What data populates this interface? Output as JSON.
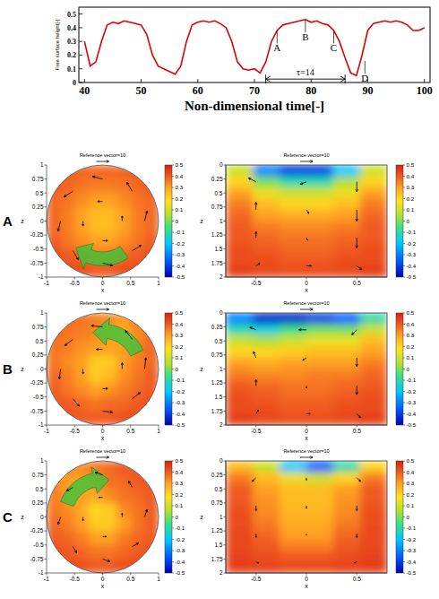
{
  "row_labels": [
    "A",
    "B",
    "C"
  ],
  "chart_data": [
    {
      "type": "line",
      "y_label": "Free surface height[-]",
      "x_label": "Non-dimensional time[-]",
      "x": [
        40,
        41,
        42,
        43,
        44,
        45,
        46,
        47,
        48,
        49,
        50,
        51,
        52,
        53,
        54,
        55,
        56,
        57,
        58,
        59,
        60,
        61,
        62,
        63,
        64,
        65,
        66,
        67,
        68,
        69,
        70,
        71,
        72,
        73,
        74,
        75,
        76,
        77,
        78,
        79,
        80,
        81,
        82,
        83,
        84,
        85,
        86,
        87,
        88,
        89,
        90,
        91,
        92,
        93,
        94,
        95,
        96,
        97,
        98,
        99,
        100
      ],
      "values": [
        0.3,
        0.12,
        0.15,
        0.3,
        0.42,
        0.44,
        0.43,
        0.45,
        0.44,
        0.43,
        0.42,
        0.35,
        0.2,
        0.12,
        0.1,
        0.08,
        0.06,
        0.12,
        0.3,
        0.42,
        0.44,
        0.45,
        0.44,
        0.45,
        0.43,
        0.4,
        0.3,
        0.15,
        0.1,
        0.09,
        0.1,
        0.07,
        0.15,
        0.3,
        0.38,
        0.42,
        0.43,
        0.44,
        0.45,
        0.46,
        0.44,
        0.45,
        0.43,
        0.42,
        0.38,
        0.3,
        0.18,
        0.07,
        0.05,
        0.2,
        0.38,
        0.43,
        0.44,
        0.45,
        0.44,
        0.45,
        0.44,
        0.42,
        0.38,
        0.38,
        0.4
      ],
      "color": "#e00000",
      "xlim": [
        39,
        101
      ],
      "xticks": [
        40,
        50,
        60,
        70,
        80,
        90,
        100
      ],
      "ylim": [
        0,
        0.55
      ],
      "yticks": [
        0,
        0.1,
        0.2,
        0.3,
        0.4,
        0.5
      ],
      "annotations": [
        {
          "text": "A",
          "x": 74,
          "y": 0.22
        },
        {
          "text": "B",
          "x": 79,
          "y": 0.3
        },
        {
          "text": "C",
          "x": 84,
          "y": 0.22
        },
        {
          "text": "D",
          "x": 89.5,
          "y": 0.0
        }
      ],
      "interval": {
        "label": "τ=14",
        "start": 72,
        "end": 86,
        "y": 0.025
      }
    },
    {
      "type": "contour",
      "title": "Reference vector=10",
      "reference_vector": 10,
      "x_label": "x",
      "y_label": "z",
      "xlim": [
        -1,
        1
      ],
      "ylim": [
        -1,
        1
      ],
      "xticks": [
        -1,
        -0.5,
        0,
        0.5,
        1
      ],
      "yticks": [
        -1,
        -0.75,
        -0.5,
        -0.25,
        0,
        0.25,
        0.5,
        0.75,
        1
      ],
      "cells": [
        [
          0.4,
          0.4,
          0.38,
          0.38,
          0.38,
          0.38,
          0.4,
          0.4
        ],
        [
          0.4,
          0.38,
          0.36,
          0.35,
          0.35,
          0.36,
          0.38,
          0.4
        ],
        [
          0.38,
          0.36,
          0.33,
          0.3,
          0.3,
          0.33,
          0.36,
          0.38
        ],
        [
          0.38,
          0.35,
          0.3,
          0.25,
          0.25,
          0.3,
          0.35,
          0.38
        ],
        [
          0.38,
          0.35,
          0.3,
          0.25,
          0.25,
          0.3,
          0.35,
          0.38
        ],
        [
          0.4,
          0.36,
          0.33,
          0.3,
          0.3,
          0.33,
          0.36,
          0.4
        ],
        [
          0.42,
          0.4,
          0.38,
          0.36,
          0.36,
          0.38,
          0.4,
          0.42
        ],
        [
          0.42,
          0.42,
          0.42,
          0.4,
          0.4,
          0.42,
          0.42,
          0.42
        ]
      ],
      "colorbar": {
        "range": [
          -0.5,
          0.5
        ],
        "ticks": [
          -0.5,
          -0.4,
          -0.3,
          -0.2,
          -0.1,
          0,
          0.1,
          0.2,
          0.3,
          0.4,
          0.5
        ]
      },
      "vectors": [
        [
          0.75,
          0,
          2,
          8
        ],
        [
          0.53,
          0.53,
          -4.3,
          7.1
        ],
        [
          0,
          0.75,
          -8,
          2
        ],
        [
          -0.53,
          0.53,
          -7.1,
          -4.3
        ],
        [
          -0.75,
          0,
          -2,
          -8
        ],
        [
          -0.53,
          -0.53,
          4.3,
          -7.1
        ],
        [
          0,
          -0.75,
          8,
          -2
        ],
        [
          0.53,
          -0.53,
          7.1,
          4.3
        ],
        [
          0.35,
          0,
          0,
          4
        ],
        [
          0,
          0.35,
          -4,
          0
        ],
        [
          -0.35,
          0,
          0,
          -4
        ],
        [
          0,
          -0.35,
          4,
          0
        ]
      ]
    },
    {
      "type": "contour",
      "title": "Reference vector=10",
      "reference_vector": 10,
      "x_label": "x",
      "y_label": "z",
      "xlim": [
        -0.8,
        0.8
      ],
      "ylim": [
        2,
        0
      ],
      "xticks": [
        -0.5,
        0,
        0.5
      ],
      "yticks": [
        0,
        0.25,
        0.5,
        0.75,
        1,
        1.25,
        1.5,
        1.75,
        2
      ],
      "cells": [
        [
          0.1,
          -0.3,
          -0.4,
          -0.4,
          -0.2,
          0.1
        ],
        [
          0.2,
          0.0,
          -0.1,
          -0.1,
          0.05,
          0.2
        ],
        [
          0.3,
          0.15,
          0.1,
          0.1,
          0.15,
          0.3
        ],
        [
          0.35,
          0.25,
          0.2,
          0.2,
          0.25,
          0.35
        ],
        [
          0.38,
          0.3,
          0.28,
          0.28,
          0.3,
          0.38
        ],
        [
          0.4,
          0.35,
          0.33,
          0.33,
          0.35,
          0.4
        ],
        [
          0.4,
          0.38,
          0.36,
          0.36,
          0.38,
          0.4
        ],
        [
          0.42,
          0.4,
          0.38,
          0.38,
          0.4,
          0.42
        ],
        [
          0.42,
          0.42,
          0.4,
          0.4,
          0.42,
          0.42
        ],
        [
          0.45,
          0.43,
          0.42,
          0.42,
          0.43,
          0.45
        ]
      ],
      "colorbar": {
        "range": [
          -0.5,
          0.5
        ],
        "ticks": [
          -0.5,
          -0.4,
          -0.3,
          -0.2,
          -0.1,
          0,
          0.1,
          0.2,
          0.3,
          0.4,
          0.5
        ]
      },
      "vectors": [
        [
          -0.5,
          0.3,
          -6,
          -3
        ],
        [
          0,
          0.3,
          -5,
          2
        ],
        [
          0.5,
          0.3,
          0,
          8
        ],
        [
          -0.5,
          0.8,
          0,
          -6
        ],
        [
          0,
          0.8,
          2,
          3
        ],
        [
          0.5,
          0.8,
          0,
          9
        ],
        [
          -0.5,
          1.3,
          0,
          -5
        ],
        [
          0,
          1.3,
          1,
          2
        ],
        [
          0.5,
          1.3,
          0,
          8
        ],
        [
          -0.5,
          1.8,
          3,
          -2
        ],
        [
          0,
          1.8,
          4,
          0
        ],
        [
          0.5,
          1.8,
          4,
          3
        ]
      ]
    },
    {
      "type": "contour",
      "title": "Reference vector=10",
      "reference_vector": 10,
      "x_label": "x",
      "y_label": "z",
      "xlim": [
        -1,
        1
      ],
      "ylim": [
        -1,
        1
      ],
      "xticks": [
        -1,
        -0.5,
        0,
        0.5,
        1
      ],
      "yticks": [
        -1,
        -0.75,
        -0.5,
        -0.25,
        0,
        0.25,
        0.5,
        0.75,
        1
      ],
      "cells": [
        [
          0.38,
          0.38,
          0.36,
          0.35,
          0.33,
          0.3,
          0.35,
          0.38
        ],
        [
          0.38,
          0.36,
          0.35,
          0.33,
          0.3,
          0.28,
          0.33,
          0.38
        ],
        [
          0.36,
          0.35,
          0.32,
          0.3,
          0.3,
          0.3,
          0.35,
          0.38
        ],
        [
          0.36,
          0.33,
          0.3,
          0.22,
          0.22,
          0.3,
          0.35,
          0.38
        ],
        [
          0.38,
          0.35,
          0.3,
          0.22,
          0.25,
          0.32,
          0.36,
          0.4
        ],
        [
          0.4,
          0.36,
          0.33,
          0.3,
          0.32,
          0.35,
          0.38,
          0.4
        ],
        [
          0.4,
          0.4,
          0.38,
          0.36,
          0.38,
          0.38,
          0.4,
          0.42
        ],
        [
          0.42,
          0.42,
          0.4,
          0.4,
          0.4,
          0.42,
          0.42,
          0.42
        ]
      ],
      "colorbar": {
        "range": [
          -0.5,
          0.5
        ],
        "ticks": [
          -0.5,
          -0.4,
          -0.3,
          -0.2,
          -0.1,
          0,
          0.1,
          0.2,
          0.3,
          0.4,
          0.5
        ]
      },
      "vectors": [
        [
          0.75,
          0,
          1,
          9
        ],
        [
          0.53,
          0.53,
          -5.5,
          7
        ],
        [
          0,
          0.75,
          -9,
          1
        ],
        [
          -0.53,
          0.53,
          -6.5,
          -5
        ],
        [
          -0.75,
          0,
          -1,
          -8
        ],
        [
          -0.53,
          -0.53,
          5,
          -6
        ],
        [
          0,
          -0.75,
          8,
          -1
        ],
        [
          0.53,
          -0.53,
          6.5,
          5
        ],
        [
          0.35,
          0,
          0,
          5
        ],
        [
          0,
          0.35,
          -5,
          0
        ],
        [
          -0.35,
          0,
          0,
          -4
        ],
        [
          0,
          -0.35,
          4,
          0
        ]
      ]
    },
    {
      "type": "contour",
      "title": "Reference vector=10",
      "reference_vector": 10,
      "x_label": "x",
      "y_label": "z",
      "xlim": [
        -0.8,
        0.8
      ],
      "ylim": [
        2,
        0
      ],
      "xticks": [
        -0.5,
        0,
        0.5
      ],
      "yticks": [
        0,
        0.25,
        0.5,
        0.75,
        1,
        1.25,
        1.5,
        1.75,
        2
      ],
      "cells": [
        [
          -0.3,
          -0.45,
          -0.45,
          -0.4,
          -0.35,
          -0.1
        ],
        [
          -0.1,
          -0.15,
          -0.05,
          0.0,
          0.0,
          0.1
        ],
        [
          0.1,
          0.05,
          0.1,
          0.15,
          0.15,
          0.25
        ],
        [
          0.2,
          0.2,
          0.22,
          0.25,
          0.25,
          0.3
        ],
        [
          0.3,
          0.28,
          0.3,
          0.3,
          0.3,
          0.35
        ],
        [
          0.35,
          0.33,
          0.33,
          0.35,
          0.35,
          0.38
        ],
        [
          0.4,
          0.38,
          0.36,
          0.36,
          0.38,
          0.4
        ],
        [
          0.42,
          0.4,
          0.38,
          0.38,
          0.4,
          0.42
        ],
        [
          0.42,
          0.42,
          0.4,
          0.4,
          0.42,
          0.42
        ],
        [
          0.45,
          0.43,
          0.42,
          0.42,
          0.43,
          0.45
        ]
      ],
      "colorbar": {
        "range": [
          -0.5,
          0.5
        ],
        "ticks": [
          -0.5,
          -0.4,
          -0.3,
          -0.2,
          -0.1,
          0,
          0.1,
          0.2,
          0.3,
          0.4,
          0.5
        ]
      },
      "vectors": [
        [
          -0.5,
          0.3,
          -5,
          -2
        ],
        [
          0,
          0.3,
          -6,
          0
        ],
        [
          0.5,
          0.3,
          -4,
          4
        ],
        [
          -0.5,
          0.8,
          -2,
          -5
        ],
        [
          0,
          0.8,
          -3,
          2
        ],
        [
          0.5,
          0.8,
          0,
          7
        ],
        [
          -0.5,
          1.3,
          0,
          -5
        ],
        [
          0,
          1.3,
          0,
          2
        ],
        [
          0.5,
          1.3,
          0,
          7
        ],
        [
          -0.5,
          1.8,
          2,
          -3
        ],
        [
          0,
          1.8,
          3,
          0
        ],
        [
          0.5,
          1.8,
          3,
          3
        ]
      ]
    },
    {
      "type": "contour",
      "title": "Reference vector=10",
      "reference_vector": 10,
      "x_label": "x",
      "y_label": "z",
      "xlim": [
        -1,
        1
      ],
      "ylim": [
        -1,
        1
      ],
      "xticks": [
        -1,
        -0.5,
        0,
        0.5,
        1
      ],
      "yticks": [
        -1,
        -0.75,
        -0.5,
        -0.25,
        0,
        0.25,
        0.5,
        0.75,
        1
      ],
      "cells": [
        [
          0.35,
          0.32,
          0.33,
          0.35,
          0.38,
          0.4,
          0.4,
          0.4
        ],
        [
          0.33,
          0.3,
          0.3,
          0.33,
          0.36,
          0.38,
          0.4,
          0.4
        ],
        [
          0.35,
          0.32,
          0.3,
          0.28,
          0.33,
          0.36,
          0.38,
          0.4
        ],
        [
          0.36,
          0.33,
          0.28,
          0.2,
          0.22,
          0.33,
          0.36,
          0.4
        ],
        [
          0.38,
          0.35,
          0.3,
          0.22,
          0.22,
          0.3,
          0.36,
          0.4
        ],
        [
          0.4,
          0.38,
          0.35,
          0.3,
          0.3,
          0.35,
          0.38,
          0.4
        ],
        [
          0.42,
          0.4,
          0.38,
          0.36,
          0.36,
          0.38,
          0.4,
          0.42
        ],
        [
          0.42,
          0.42,
          0.42,
          0.4,
          0.4,
          0.42,
          0.42,
          0.42
        ]
      ],
      "colorbar": {
        "range": [
          -0.5,
          0.5
        ],
        "ticks": [
          -0.5,
          -0.4,
          -0.3,
          -0.2,
          -0.1,
          0,
          0.1,
          0.2,
          0.3,
          0.4,
          0.5
        ]
      },
      "vectors": [
        [
          0.75,
          0,
          2,
          6
        ],
        [
          0.53,
          0.53,
          -3,
          5
        ],
        [
          0,
          0.75,
          -6,
          2
        ],
        [
          -0.53,
          0.53,
          -5,
          -3
        ],
        [
          -0.75,
          0,
          -2,
          -6
        ],
        [
          -0.53,
          -0.53,
          3,
          -5
        ],
        [
          0,
          -0.75,
          6,
          -2
        ],
        [
          0.53,
          -0.53,
          5,
          3
        ],
        [
          0.35,
          0,
          0,
          3
        ],
        [
          0,
          0.35,
          -3,
          0
        ],
        [
          -0.35,
          0,
          0,
          -3
        ],
        [
          0,
          -0.35,
          3,
          0
        ]
      ]
    },
    {
      "type": "contour",
      "title": "Reference vector=10",
      "reference_vector": 10,
      "x_label": "x",
      "y_label": "z",
      "xlim": [
        -0.8,
        0.8
      ],
      "ylim": [
        2,
        0
      ],
      "xticks": [
        -0.5,
        0,
        0.5
      ],
      "yticks": [
        0,
        0.25,
        0.5,
        0.75,
        1,
        1.25,
        1.5,
        1.75,
        2
      ],
      "cells": [
        [
          0.25,
          0.1,
          -0.2,
          -0.35,
          -0.1,
          0.2
        ],
        [
          0.35,
          0.25,
          0.15,
          0.1,
          0.2,
          0.35
        ],
        [
          0.4,
          0.3,
          0.25,
          0.25,
          0.3,
          0.4
        ],
        [
          0.4,
          0.32,
          0.25,
          0.25,
          0.32,
          0.4
        ],
        [
          0.42,
          0.33,
          0.26,
          0.26,
          0.33,
          0.42
        ],
        [
          0.42,
          0.35,
          0.28,
          0.28,
          0.35,
          0.42
        ],
        [
          0.43,
          0.38,
          0.3,
          0.3,
          0.38,
          0.43
        ],
        [
          0.43,
          0.4,
          0.34,
          0.34,
          0.4,
          0.43
        ],
        [
          0.44,
          0.42,
          0.4,
          0.4,
          0.42,
          0.44
        ],
        [
          0.45,
          0.44,
          0.43,
          0.43,
          0.44,
          0.45
        ]
      ],
      "colorbar": {
        "range": [
          -0.5,
          0.5
        ],
        "ticks": [
          -0.5,
          -0.4,
          -0.3,
          -0.2,
          -0.1,
          0,
          0.1,
          0.2,
          0.3,
          0.4,
          0.5
        ]
      },
      "vectors": [
        [
          -0.5,
          0.3,
          -3,
          3
        ],
        [
          0,
          0.3,
          0,
          2
        ],
        [
          0.5,
          0.3,
          3,
          3
        ],
        [
          -0.5,
          0.8,
          0,
          4
        ],
        [
          0,
          0.8,
          0,
          2
        ],
        [
          0.5,
          0.8,
          0,
          4
        ],
        [
          -0.5,
          1.3,
          0,
          3
        ],
        [
          0,
          1.3,
          0,
          1
        ],
        [
          0.5,
          1.3,
          0,
          3
        ],
        [
          -0.5,
          1.8,
          2,
          1
        ],
        [
          0,
          1.8,
          0,
          0
        ],
        [
          0.5,
          1.8,
          -2,
          1
        ]
      ]
    }
  ]
}
